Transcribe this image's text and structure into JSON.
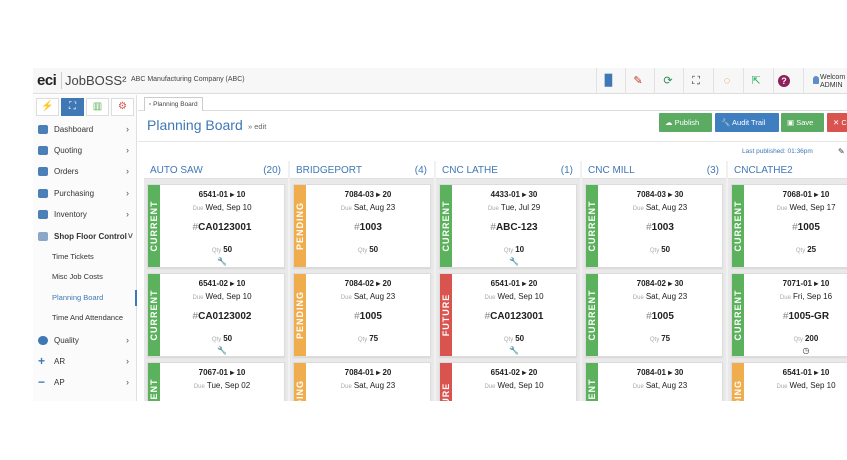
{
  "app": {
    "logo": "eci",
    "product": "JobBOSS²",
    "company": "ABC Manufacturing Company   (ABC)"
  },
  "toolbar": {
    "welcome_line1": "Welcom",
    "welcome_line2": "ADMIN"
  },
  "sidebar": {
    "items": [
      {
        "label": "Dashboard"
      },
      {
        "label": "Quoting"
      },
      {
        "label": "Orders"
      },
      {
        "label": "Purchasing"
      },
      {
        "label": "Inventory"
      },
      {
        "label": "Shop Floor Control"
      }
    ],
    "sub_items": [
      {
        "label": "Time Tickets"
      },
      {
        "label": "Misc Job Costs"
      },
      {
        "label": "Planning Board"
      },
      {
        "label": "Time And Attendance"
      }
    ],
    "items_after": [
      {
        "label": "Quality"
      },
      {
        "label": "AR"
      },
      {
        "label": "AP"
      }
    ]
  },
  "main": {
    "tab_label": "Planning Board",
    "title": "Planning Board",
    "edit_link": "» edit",
    "buttons": {
      "publish": "Publish",
      "audit": "Audit Trail",
      "save": "Save",
      "close": "C"
    },
    "last_published": "Last published: 01:36pm"
  },
  "colors": {
    "current": "#5cb15d",
    "pending": "#f0ad4e",
    "future": "#d9534f",
    "accent": "#3f78b5"
  },
  "board": {
    "columns": [
      {
        "name": "AUTO SAW",
        "count": "(20)",
        "cards": [
          {
            "status": "CURRENT",
            "job": "6541-01 ▸ 10",
            "due_label": "Due",
            "due": "Wed, Sep 10",
            "part": "CA0123001",
            "qty_label": "Qty",
            "qty": "50",
            "icon": "wrench"
          },
          {
            "status": "CURRENT",
            "job": "6541-02 ▸ 10",
            "due_label": "Due",
            "due": "Wed, Sep 10",
            "part": "CA0123002",
            "qty_label": "Qty",
            "qty": "50",
            "icon": "wrench"
          },
          {
            "status": "CURRENT",
            "job": "7067-01 ▸ 10",
            "due_label": "Due",
            "due": "Tue, Sep 02",
            "part": "",
            "qty_label": "",
            "qty": "",
            "icon": ""
          }
        ]
      },
      {
        "name": "BRIDGEPORT",
        "count": "(4)",
        "cards": [
          {
            "status": "PENDING",
            "job": "7084-03 ▸ 20",
            "due_label": "Due",
            "due": "Sat, Aug 23",
            "part": "1003",
            "qty_label": "Qty",
            "qty": "50",
            "icon": ""
          },
          {
            "status": "PENDING",
            "job": "7084-02 ▸ 20",
            "due_label": "Due",
            "due": "Sat, Aug 23",
            "part": "1005",
            "qty_label": "Qty",
            "qty": "75",
            "icon": ""
          },
          {
            "status": "PENDING",
            "job": "7084-01 ▸ 20",
            "due_label": "Due",
            "due": "Sat, Aug 23",
            "part": "",
            "qty_label": "",
            "qty": "",
            "icon": ""
          }
        ]
      },
      {
        "name": "CNC LATHE",
        "count": "(1)",
        "cards": [
          {
            "status": "CURRENT",
            "job": "4433-01 ▸ 30",
            "due_label": "Due",
            "due": "Tue, Jul 29",
            "part": "ABC-123",
            "qty_label": "Qty",
            "qty": "10",
            "icon": "wrench"
          },
          {
            "status": "FUTURE",
            "job": "6541-01 ▸ 20",
            "due_label": "Due",
            "due": "Wed, Sep 10",
            "part": "CA0123001",
            "qty_label": "Qty",
            "qty": "50",
            "icon": "wrench"
          },
          {
            "status": "FUTURE",
            "job": "6541-02 ▸ 20",
            "due_label": "Due",
            "due": "Wed, Sep 10",
            "part": "",
            "qty_label": "",
            "qty": "",
            "icon": ""
          }
        ]
      },
      {
        "name": "CNC MILL",
        "count": "(3)",
        "cards": [
          {
            "status": "CURRENT",
            "job": "7084-03 ▸ 30",
            "due_label": "Due",
            "due": "Sat, Aug 23",
            "part": "1003",
            "qty_label": "Qty",
            "qty": "50",
            "icon": ""
          },
          {
            "status": "CURRENT",
            "job": "7084-02 ▸ 30",
            "due_label": "Due",
            "due": "Sat, Aug 23",
            "part": "1005",
            "qty_label": "Qty",
            "qty": "75",
            "icon": ""
          },
          {
            "status": "CURRENT",
            "job": "7084-01 ▸ 30",
            "due_label": "Due",
            "due": "Sat, Aug 23",
            "part": "",
            "qty_label": "",
            "qty": "",
            "icon": ""
          }
        ]
      },
      {
        "name": "CNCLATHE2",
        "count": "",
        "cards": [
          {
            "status": "CURRENT",
            "job": "7068-01 ▸ 10",
            "due_label": "Due",
            "due": "Wed, Sep 17",
            "part": "1005",
            "qty_label": "Qty",
            "qty": "25",
            "icon": ""
          },
          {
            "status": "CURRENT",
            "job": "7071-01 ▸ 10",
            "due_label": "Due",
            "due": "Fri, Sep 16",
            "part": "1005-GR",
            "qty_label": "Qty",
            "qty": "200",
            "icon": "clock"
          },
          {
            "status": "PENDING",
            "job": "6541-01 ▸ 10",
            "due_label": "Due",
            "due": "Wed, Sep 10",
            "part": "",
            "qty_label": "",
            "qty": "",
            "icon": ""
          }
        ]
      }
    ]
  }
}
